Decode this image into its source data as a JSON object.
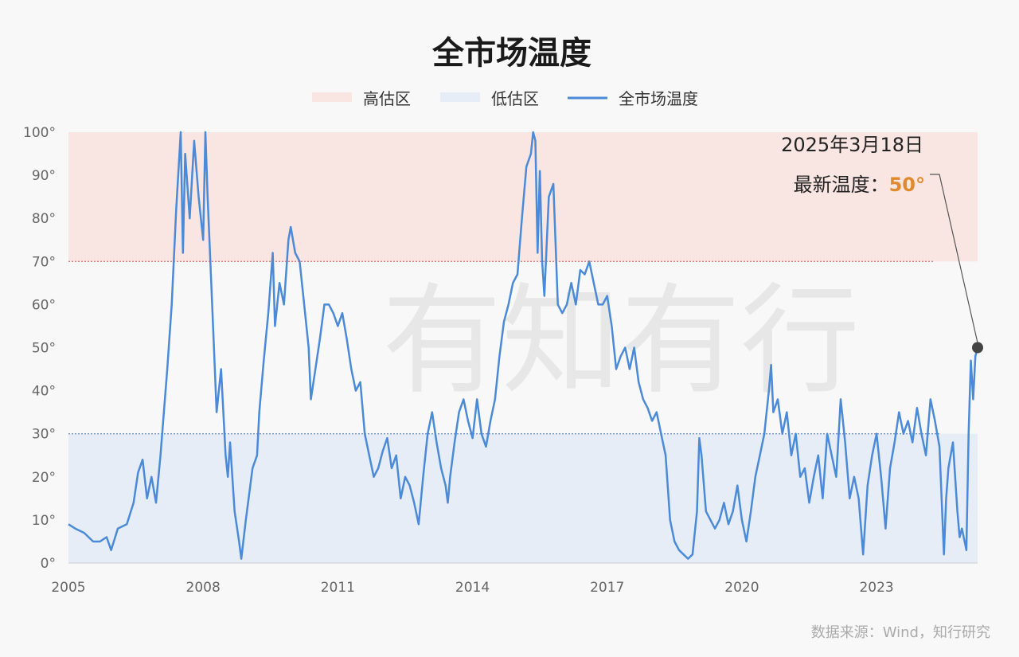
{
  "chart_data": {
    "type": "line",
    "title": "全市场温度",
    "legend": [
      {
        "label": "高估区",
        "color": "#f9e6e3",
        "kind": "band"
      },
      {
        "label": "低估区",
        "color": "#e6edf6",
        "kind": "band"
      },
      {
        "label": "全市场温度",
        "color": "#4a8ad8",
        "kind": "line"
      }
    ],
    "y_ticks": [
      "0°",
      "10°",
      "20°",
      "30°",
      "40°",
      "50°",
      "60°",
      "70°",
      "80°",
      "90°",
      "100°"
    ],
    "x_ticks": [
      "2005",
      "2008",
      "2011",
      "2014",
      "2017",
      "2020",
      "2023"
    ],
    "xlim": [
      2005.0,
      2025.25
    ],
    "ylim": [
      0,
      100
    ],
    "zones": {
      "high": [
        70,
        100
      ],
      "low": [
        0,
        30
      ]
    },
    "series": [
      {
        "name": "全市场温度",
        "color": "#4a8ad8",
        "points": [
          [
            2005.0,
            9
          ],
          [
            2005.15,
            8
          ],
          [
            2005.35,
            7
          ],
          [
            2005.55,
            5
          ],
          [
            2005.7,
            5
          ],
          [
            2005.85,
            6
          ],
          [
            2005.95,
            3
          ],
          [
            2006.1,
            8
          ],
          [
            2006.3,
            9
          ],
          [
            2006.45,
            14
          ],
          [
            2006.55,
            21
          ],
          [
            2006.65,
            24
          ],
          [
            2006.75,
            15
          ],
          [
            2006.85,
            20
          ],
          [
            2006.95,
            14
          ],
          [
            2007.05,
            25
          ],
          [
            2007.2,
            45
          ],
          [
            2007.3,
            60
          ],
          [
            2007.4,
            82
          ],
          [
            2007.5,
            100
          ],
          [
            2007.55,
            72
          ],
          [
            2007.6,
            95
          ],
          [
            2007.7,
            80
          ],
          [
            2007.8,
            98
          ],
          [
            2007.9,
            85
          ],
          [
            2008.0,
            75
          ],
          [
            2008.05,
            100
          ],
          [
            2008.1,
            85
          ],
          [
            2008.2,
            60
          ],
          [
            2008.3,
            35
          ],
          [
            2008.4,
            45
          ],
          [
            2008.5,
            25
          ],
          [
            2008.55,
            20
          ],
          [
            2008.6,
            28
          ],
          [
            2008.7,
            12
          ],
          [
            2008.8,
            5
          ],
          [
            2008.85,
            1
          ],
          [
            2008.95,
            10
          ],
          [
            2009.1,
            22
          ],
          [
            2009.2,
            25
          ],
          [
            2009.25,
            35
          ],
          [
            2009.35,
            47
          ],
          [
            2009.45,
            58
          ],
          [
            2009.55,
            72
          ],
          [
            2009.6,
            55
          ],
          [
            2009.7,
            65
          ],
          [
            2009.8,
            60
          ],
          [
            2009.9,
            75
          ],
          [
            2009.95,
            78
          ],
          [
            2010.05,
            72
          ],
          [
            2010.15,
            70
          ],
          [
            2010.25,
            60
          ],
          [
            2010.35,
            50
          ],
          [
            2010.4,
            38
          ],
          [
            2010.5,
            45
          ],
          [
            2010.6,
            52
          ],
          [
            2010.7,
            60
          ],
          [
            2010.8,
            60
          ],
          [
            2010.9,
            58
          ],
          [
            2011.0,
            55
          ],
          [
            2011.1,
            58
          ],
          [
            2011.2,
            52
          ],
          [
            2011.3,
            45
          ],
          [
            2011.4,
            40
          ],
          [
            2011.5,
            42
          ],
          [
            2011.6,
            30
          ],
          [
            2011.7,
            25
          ],
          [
            2011.8,
            20
          ],
          [
            2011.9,
            22
          ],
          [
            2012.0,
            26
          ],
          [
            2012.1,
            29
          ],
          [
            2012.2,
            22
          ],
          [
            2012.3,
            25
          ],
          [
            2012.4,
            15
          ],
          [
            2012.5,
            20
          ],
          [
            2012.6,
            18
          ],
          [
            2012.7,
            14
          ],
          [
            2012.8,
            9
          ],
          [
            2012.9,
            20
          ],
          [
            2013.0,
            30
          ],
          [
            2013.1,
            35
          ],
          [
            2013.2,
            28
          ],
          [
            2013.3,
            22
          ],
          [
            2013.4,
            18
          ],
          [
            2013.45,
            14
          ],
          [
            2013.5,
            20
          ],
          [
            2013.6,
            28
          ],
          [
            2013.7,
            35
          ],
          [
            2013.8,
            38
          ],
          [
            2013.9,
            33
          ],
          [
            2014.0,
            29
          ],
          [
            2014.1,
            38
          ],
          [
            2014.2,
            30
          ],
          [
            2014.3,
            27
          ],
          [
            2014.4,
            33
          ],
          [
            2014.5,
            38
          ],
          [
            2014.6,
            48
          ],
          [
            2014.7,
            56
          ],
          [
            2014.8,
            60
          ],
          [
            2014.9,
            65
          ],
          [
            2015.0,
            67
          ],
          [
            2015.1,
            80
          ],
          [
            2015.2,
            92
          ],
          [
            2015.3,
            95
          ],
          [
            2015.35,
            100
          ],
          [
            2015.4,
            98
          ],
          [
            2015.45,
            72
          ],
          [
            2015.5,
            91
          ],
          [
            2015.55,
            70
          ],
          [
            2015.6,
            62
          ],
          [
            2015.7,
            85
          ],
          [
            2015.8,
            88
          ],
          [
            2015.9,
            60
          ],
          [
            2016.0,
            58
          ],
          [
            2016.1,
            60
          ],
          [
            2016.2,
            65
          ],
          [
            2016.3,
            60
          ],
          [
            2016.4,
            68
          ],
          [
            2016.5,
            67
          ],
          [
            2016.6,
            70
          ],
          [
            2016.7,
            65
          ],
          [
            2016.8,
            60
          ],
          [
            2016.9,
            60
          ],
          [
            2017.0,
            62
          ],
          [
            2017.1,
            55
          ],
          [
            2017.2,
            45
          ],
          [
            2017.3,
            48
          ],
          [
            2017.4,
            50
          ],
          [
            2017.5,
            45
          ],
          [
            2017.6,
            50
          ],
          [
            2017.7,
            42
          ],
          [
            2017.8,
            38
          ],
          [
            2017.9,
            36
          ],
          [
            2018.0,
            33
          ],
          [
            2018.1,
            35
          ],
          [
            2018.2,
            30
          ],
          [
            2018.3,
            25
          ],
          [
            2018.4,
            10
          ],
          [
            2018.5,
            5
          ],
          [
            2018.6,
            3
          ],
          [
            2018.7,
            2
          ],
          [
            2018.8,
            1
          ],
          [
            2018.9,
            2
          ],
          [
            2019.0,
            12
          ],
          [
            2019.05,
            29
          ],
          [
            2019.1,
            25
          ],
          [
            2019.2,
            12
          ],
          [
            2019.3,
            10
          ],
          [
            2019.4,
            8
          ],
          [
            2019.5,
            10
          ],
          [
            2019.6,
            14
          ],
          [
            2019.7,
            9
          ],
          [
            2019.8,
            12
          ],
          [
            2019.9,
            18
          ],
          [
            2020.0,
            10
          ],
          [
            2020.1,
            5
          ],
          [
            2020.2,
            12
          ],
          [
            2020.3,
            20
          ],
          [
            2020.4,
            25
          ],
          [
            2020.5,
            30
          ],
          [
            2020.6,
            40
          ],
          [
            2020.65,
            46
          ],
          [
            2020.7,
            35
          ],
          [
            2020.8,
            38
          ],
          [
            2020.9,
            30
          ],
          [
            2021.0,
            35
          ],
          [
            2021.1,
            25
          ],
          [
            2021.2,
            30
          ],
          [
            2021.3,
            20
          ],
          [
            2021.4,
            22
          ],
          [
            2021.5,
            14
          ],
          [
            2021.6,
            20
          ],
          [
            2021.7,
            25
          ],
          [
            2021.8,
            15
          ],
          [
            2021.9,
            30
          ],
          [
            2022.0,
            25
          ],
          [
            2022.1,
            20
          ],
          [
            2022.2,
            38
          ],
          [
            2022.3,
            28
          ],
          [
            2022.4,
            15
          ],
          [
            2022.5,
            20
          ],
          [
            2022.6,
            15
          ],
          [
            2022.7,
            2
          ],
          [
            2022.8,
            18
          ],
          [
            2022.9,
            25
          ],
          [
            2023.0,
            30
          ],
          [
            2023.1,
            20
          ],
          [
            2023.2,
            8
          ],
          [
            2023.3,
            22
          ],
          [
            2023.4,
            28
          ],
          [
            2023.5,
            35
          ],
          [
            2023.6,
            30
          ],
          [
            2023.7,
            33
          ],
          [
            2023.8,
            28
          ],
          [
            2023.9,
            36
          ],
          [
            2024.0,
            30
          ],
          [
            2024.1,
            25
          ],
          [
            2024.2,
            38
          ],
          [
            2024.3,
            33
          ],
          [
            2024.4,
            27
          ],
          [
            2024.5,
            2
          ],
          [
            2024.55,
            15
          ],
          [
            2024.6,
            22
          ],
          [
            2024.7,
            28
          ],
          [
            2024.75,
            20
          ],
          [
            2024.8,
            12
          ],
          [
            2024.85,
            6
          ],
          [
            2024.9,
            8
          ],
          [
            2025.0,
            3
          ],
          [
            2025.05,
            30
          ],
          [
            2025.1,
            47
          ],
          [
            2025.15,
            38
          ],
          [
            2025.2,
            48
          ],
          [
            2025.25,
            50
          ]
        ]
      }
    ],
    "annotation": {
      "date_text": "2025年3月18日",
      "label": "最新温度：",
      "value_text": "50°",
      "point": [
        2025.25,
        50
      ]
    },
    "grid": false
  },
  "watermark": "有知有行",
  "source": "数据来源：Wind，知行研究"
}
